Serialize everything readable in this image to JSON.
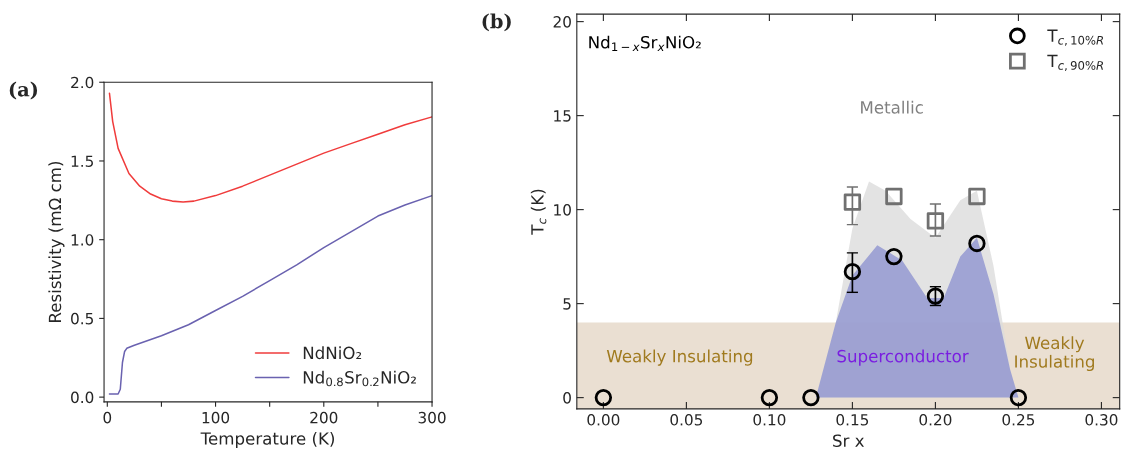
{
  "chart_data": [
    {
      "type": "line",
      "title": "(a)",
      "xlabel": "Temperature (K)",
      "ylabel": "Resistivity (mΩ cm)",
      "xlim": [
        -3,
        300
      ],
      "ylim": [
        -0.03,
        2.0
      ],
      "xticks": [
        0,
        {
          "value": 50,
          "label": null
        },
        100,
        {
          "value": 150,
          "label": null
        },
        200,
        {
          "value": 250,
          "label": null
        },
        300
      ],
      "yticks": [
        {
          "value": 0,
          "label": "0.0"
        },
        0.5,
        {
          "value": 1,
          "label": "1.0"
        },
        1.5,
        {
          "value": 2,
          "label": "2.0"
        }
      ],
      "legend": "bottom right",
      "grid": false,
      "line_style": "solid",
      "marker": "none",
      "series": [
        {
          "name": "NdNiO₂",
          "color": "#f03c3c",
          "x": [
            2,
            5,
            10,
            20,
            30,
            40,
            50,
            60,
            70,
            80,
            100,
            125,
            150,
            175,
            200,
            225,
            250,
            275,
            300
          ],
          "values": [
            1.93,
            1.75,
            1.58,
            1.42,
            1.34,
            1.29,
            1.26,
            1.245,
            1.24,
            1.245,
            1.28,
            1.34,
            1.41,
            1.48,
            1.55,
            1.61,
            1.67,
            1.73,
            1.78
          ]
        },
        {
          "name": "Nd$_{0.8}$Sr$_{0.2}$NiO₂",
          "color": "#6a62b0",
          "x": [
            2,
            10,
            12,
            14,
            16,
            18,
            25,
            50,
            75,
            100,
            125,
            150,
            175,
            200,
            225,
            250,
            275,
            300
          ],
          "values": [
            0.02,
            0.02,
            0.05,
            0.22,
            0.29,
            0.31,
            0.33,
            0.39,
            0.46,
            0.55,
            0.64,
            0.74,
            0.84,
            0.95,
            1.05,
            1.15,
            1.22,
            1.28
          ]
        }
      ]
    },
    {
      "type": "scatter",
      "title": "(b)",
      "xlabel": "Sr x",
      "ylabel": "T$_{c}$ (K)",
      "xlim": [
        -0.016,
        0.311
      ],
      "ylim": [
        -0.6,
        20.4
      ],
      "xticks": [
        {
          "value": 0,
          "label": "0.00"
        },
        0.05,
        {
          "value": 0.1,
          "label": "0.10"
        },
        0.15,
        {
          "value": 0.2,
          "label": "0.20"
        },
        0.25,
        {
          "value": 0.3,
          "label": "0.30"
        }
      ],
      "yticks": [
        0,
        5,
        10,
        15,
        20
      ],
      "legend": "top right",
      "grid": false,
      "bands": [
        {
          "axis": "y",
          "from": -0.6,
          "to": 4,
          "color": "#eadfd2"
        }
      ],
      "series": [
        {
          "type": "area",
          "color": "#dcdcdc",
          "x": [
            0.128,
            0.14,
            0.15,
            0.16,
            0.17,
            0.185,
            0.2,
            0.215,
            0.225,
            0.235,
            0.245,
            0.25
          ],
          "values": [
            0,
            4,
            9,
            11.5,
            11,
            9.5,
            8.5,
            10.5,
            11,
            7,
            1.5,
            0
          ]
        },
        {
          "type": "area",
          "color": "#8f93cf",
          "x": [
            0.128,
            0.14,
            0.15,
            0.165,
            0.18,
            0.195,
            0.205,
            0.215,
            0.225,
            0.235,
            0.245,
            0.25
          ],
          "values": [
            0,
            4,
            6.5,
            8.1,
            7.3,
            5.3,
            5.3,
            7.5,
            8.5,
            5.5,
            1.5,
            0
          ]
        },
        {
          "name": "T$_{c,10%R}$",
          "color": "#000000",
          "marker": "circle",
          "x": [
            0,
            0.1,
            0.125,
            0.15,
            0.175,
            0.2,
            0.225,
            0.25
          ],
          "values": [
            0,
            0,
            0,
            6.7,
            7.5,
            5.4,
            8.2,
            0
          ],
          "errors": [
            null,
            null,
            null,
            [
              5.6,
              7.7
            ],
            null,
            [
              4.9,
              5.9
            ],
            null,
            null
          ]
        },
        {
          "name": "T$_{c,90%R}$",
          "color": "#707070",
          "marker": "square",
          "x": [
            0.15,
            0.175,
            0.2,
            0.225
          ],
          "values": [
            10.4,
            10.7,
            9.4,
            10.7
          ],
          "errors": [
            [
              9.2,
              11.2
            ],
            null,
            [
              8.6,
              10.3
            ],
            null
          ]
        }
      ],
      "annotations": [
        "Nd$_{1−x}$Sr$_{x}$NiO₂",
        "Metallic",
        "Weakly Insulating",
        "Superconductor",
        "Weakly\nInsulating"
      ]
    }
  ]
}
